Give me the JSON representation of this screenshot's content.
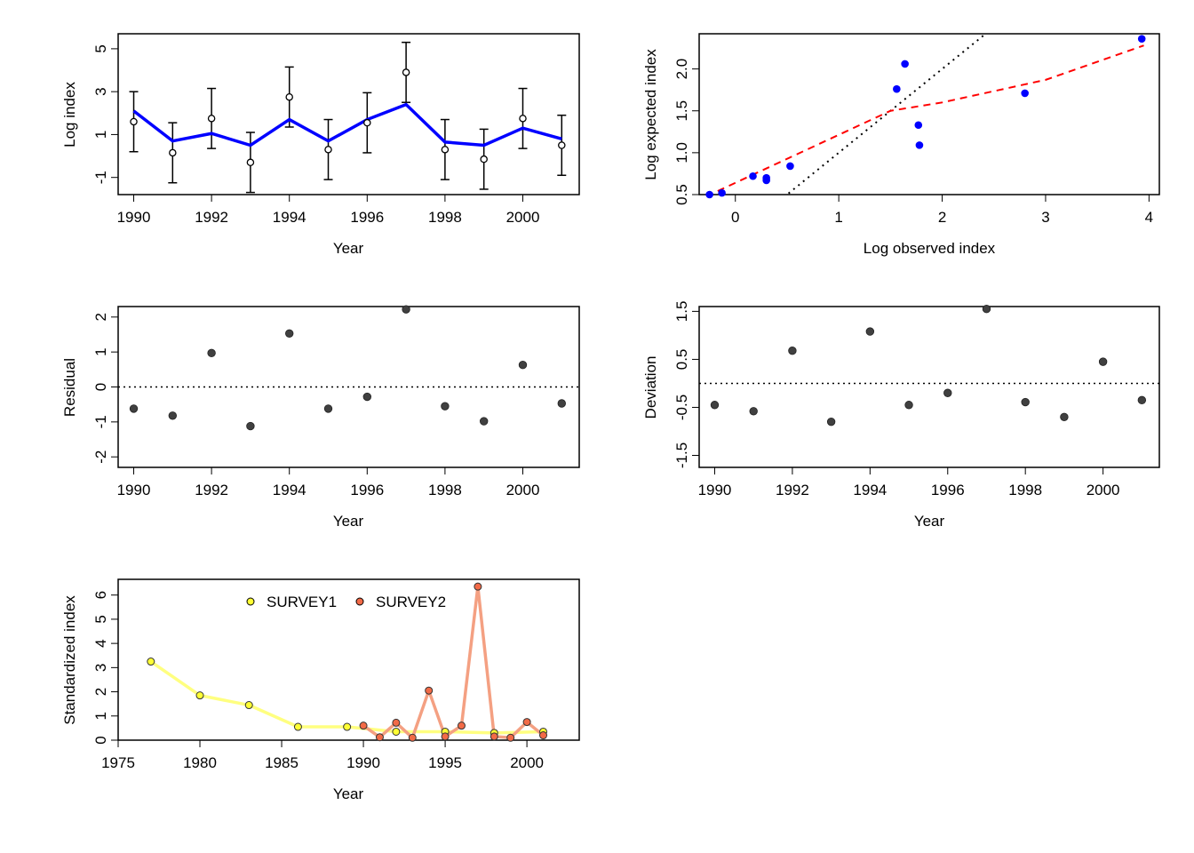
{
  "chart_data": [
    {
      "id": "p1",
      "type": "line",
      "xlabel": "Year",
      "ylabel": "Log index",
      "xlim": [
        1989.6,
        2001.45
      ],
      "ylim": [
        -1.8,
        5.7
      ],
      "xticks": [
        1990,
        1992,
        1994,
        1996,
        1998,
        2000
      ],
      "yticks": [
        -1,
        1,
        3,
        5
      ],
      "ytick_labels": [
        "-1",
        "1",
        "3",
        "5"
      ],
      "x": [
        1990,
        1991,
        1992,
        1993,
        1994,
        1995,
        1996,
        1997,
        1998,
        1999,
        2000,
        2001
      ],
      "observed": [
        1.6,
        0.15,
        1.75,
        -0.3,
        2.75,
        0.3,
        1.55,
        3.9,
        0.3,
        -0.15,
        1.75,
        0.5
      ],
      "ci_lower": [
        0.2,
        -1.25,
        0.35,
        -1.7,
        1.35,
        -1.1,
        0.15,
        2.5,
        -1.1,
        -1.55,
        0.35,
        -0.9
      ],
      "ci_upper": [
        3.0,
        1.55,
        3.15,
        1.1,
        4.15,
        1.7,
        2.95,
        5.3,
        1.7,
        1.25,
        3.15,
        1.9
      ],
      "expected": [
        2.1,
        0.7,
        1.05,
        0.5,
        1.7,
        0.7,
        1.7,
        2.4,
        0.65,
        0.5,
        1.3,
        0.8
      ],
      "colors": {
        "expected": "#0000ff",
        "points_fill": "#ffffff",
        "points_stroke": "#000000"
      }
    },
    {
      "id": "p2",
      "type": "scatter",
      "xlabel": "Log observed index",
      "ylabel": "Log expected index",
      "xlim": [
        -0.35,
        4.1
      ],
      "ylim": [
        0.5,
        2.42
      ],
      "xticks": [
        0,
        1,
        2,
        3,
        4
      ],
      "yticks": [
        0.5,
        1.0,
        1.5,
        2.0
      ],
      "ytick_labels": [
        "0.5",
        "1.0",
        "1.5",
        "2.0"
      ],
      "points": [
        [
          -0.25,
          0.5
        ],
        [
          -0.13,
          0.52
        ],
        [
          0.17,
          0.72
        ],
        [
          0.3,
          0.7
        ],
        [
          0.3,
          0.67
        ],
        [
          0.53,
          0.84
        ],
        [
          1.56,
          1.76
        ],
        [
          1.64,
          2.06
        ],
        [
          1.77,
          1.33
        ],
        [
          1.78,
          1.09
        ],
        [
          2.8,
          1.71
        ],
        [
          3.93,
          2.36
        ]
      ],
      "identity_line": {
        "slope": 1,
        "intercept": 0
      },
      "fit_line": [
        [
          -0.28,
          0.48
        ],
        [
          1.5,
          1.5
        ],
        [
          2.0,
          1.6
        ],
        [
          3.0,
          1.87
        ],
        [
          3.95,
          2.28
        ]
      ],
      "colors": {
        "points": "#0000ff",
        "fit": "#ff0000",
        "identity": "#000000"
      }
    },
    {
      "id": "p3",
      "type": "scatter",
      "xlabel": "Year",
      "ylabel": "Residual",
      "xlim": [
        1989.6,
        2001.45
      ],
      "ylim": [
        -2.3,
        2.3
      ],
      "xticks": [
        1990,
        1992,
        1994,
        1996,
        1998,
        2000
      ],
      "yticks": [
        -2,
        -1,
        0,
        1,
        2
      ],
      "ytick_labels": [
        "-2",
        "-1",
        "0",
        "1",
        "2"
      ],
      "x": [
        1990,
        1991,
        1992,
        1993,
        1994,
        1995,
        1996,
        1997,
        1998,
        1999,
        2000,
        2001
      ],
      "y": [
        -0.62,
        -0.82,
        0.97,
        -1.12,
        1.53,
        -0.62,
        -0.28,
        2.22,
        -0.55,
        -0.98,
        0.63,
        -0.47
      ],
      "reference_line": 0,
      "colors": {
        "points": "#404040"
      }
    },
    {
      "id": "p4",
      "type": "scatter",
      "xlabel": "Year",
      "ylabel": "Deviation",
      "xlim": [
        1989.6,
        2001.45
      ],
      "ylim": [
        -1.75,
        1.6
      ],
      "xticks": [
        1990,
        1992,
        1994,
        1996,
        1998,
        2000
      ],
      "yticks": [
        -1.5,
        -0.5,
        0.5,
        1.5
      ],
      "ytick_labels": [
        "-1.5",
        "-0.5",
        "0.5",
        "1.5"
      ],
      "x": [
        1990,
        1991,
        1992,
        1993,
        1994,
        1995,
        1996,
        1997,
        1998,
        1999,
        2000,
        2001
      ],
      "y": [
        -0.45,
        -0.58,
        0.68,
        -0.8,
        1.08,
        -0.45,
        -0.2,
        1.55,
        -0.39,
        -0.7,
        0.45,
        -0.35
      ],
      "reference_line": 0,
      "colors": {
        "points": "#404040"
      }
    },
    {
      "id": "p5",
      "type": "line",
      "xlabel": "Year",
      "ylabel": "Standardized index",
      "xlim": [
        1975,
        2003.2
      ],
      "ylim": [
        0,
        6.65
      ],
      "xticks": [
        1975,
        1980,
        1985,
        1990,
        1995,
        2000
      ],
      "yticks": [
        0,
        1,
        2,
        3,
        4,
        5,
        6
      ],
      "ytick_labels": [
        "0",
        "1",
        "2",
        "3",
        "4",
        "5",
        "6"
      ],
      "legend": "top-center",
      "series": [
        {
          "name": "SURVEY1",
          "line_color": "#ffff80",
          "point_fill": "#ffff33",
          "x": [
            1977,
            1980,
            1983,
            1986,
            1989,
            1992,
            1995,
            1998,
            2001
          ],
          "y": [
            3.25,
            1.85,
            1.45,
            0.55,
            0.55,
            0.35,
            0.35,
            0.3,
            0.35
          ]
        },
        {
          "name": "SURVEY2",
          "line_color": "#f4a082",
          "point_fill": "#f26a47",
          "x": [
            1990,
            1991,
            1992,
            1993,
            1994,
            1995,
            1996,
            1997,
            1998,
            1999,
            2000,
            2001
          ],
          "y": [
            0.6,
            0.12,
            0.72,
            0.1,
            2.05,
            0.15,
            0.6,
            6.35,
            0.15,
            0.1,
            0.75,
            0.2
          ]
        }
      ]
    }
  ]
}
